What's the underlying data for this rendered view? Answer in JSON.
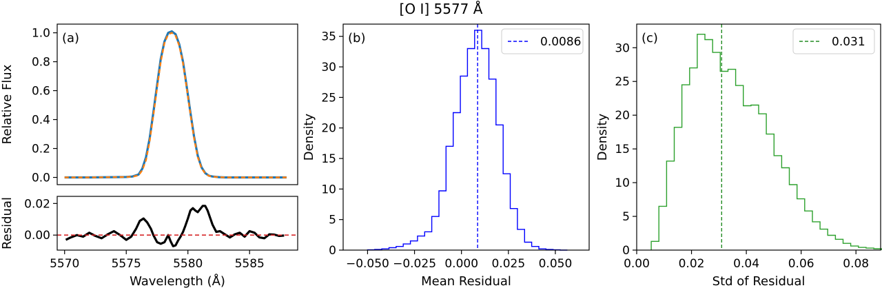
{
  "figure": {
    "title": "[O I] 5577 Å"
  },
  "chart_data": [
    {
      "id": "a",
      "type": "line",
      "panel_label": "(a)",
      "xlabel": "Wavelength (Å)",
      "ylabel": "Relative Flux",
      "xlim": [
        5569.4,
        5588.9
      ],
      "ylim": [
        -0.05,
        1.06
      ],
      "yticks": [
        0.0,
        0.2,
        0.4,
        0.6,
        0.8,
        1.0
      ],
      "ytick_labels": [
        "0.0",
        "0.2",
        "0.4",
        "0.6",
        "0.8",
        "1.0"
      ],
      "series": [
        {
          "color": "#1f77b4",
          "style": "solid",
          "x": [
            5570.0,
            5572.0,
            5574.0,
            5575.0,
            5575.5,
            5576.0,
            5576.3,
            5576.6,
            5576.9,
            5577.2,
            5577.5,
            5577.8,
            5578.1,
            5578.4,
            5578.7,
            5579.0,
            5579.3,
            5579.6,
            5579.9,
            5580.2,
            5580.5,
            5580.8,
            5581.1,
            5581.4,
            5581.7,
            5582.0,
            5582.5,
            5583.0,
            5584.0,
            5586.0,
            5588.0
          ],
          "y": [
            0.0,
            0.0,
            0.002,
            0.003,
            0.006,
            0.02,
            0.06,
            0.14,
            0.27,
            0.45,
            0.64,
            0.82,
            0.94,
            1.0,
            1.01,
            0.99,
            0.92,
            0.8,
            0.63,
            0.45,
            0.28,
            0.15,
            0.07,
            0.03,
            0.012,
            0.006,
            0.002,
            0.0,
            0.0,
            0.0,
            0.0
          ]
        },
        {
          "color": "#ff7f0e",
          "style": "dashed",
          "x": [
            5570.0,
            5572.0,
            5574.0,
            5575.0,
            5575.5,
            5576.0,
            5576.3,
            5576.6,
            5576.9,
            5577.2,
            5577.5,
            5577.8,
            5578.1,
            5578.4,
            5578.7,
            5579.0,
            5579.3,
            5579.6,
            5579.9,
            5580.2,
            5580.5,
            5580.8,
            5581.1,
            5581.4,
            5581.7,
            5582.0,
            5582.5,
            5583.0,
            5584.0,
            5586.0,
            5588.0
          ],
          "y": [
            0.0,
            0.0,
            0.002,
            0.003,
            0.005,
            0.015,
            0.05,
            0.12,
            0.25,
            0.43,
            0.62,
            0.8,
            0.93,
            0.99,
            1.0,
            0.98,
            0.91,
            0.79,
            0.62,
            0.44,
            0.27,
            0.14,
            0.065,
            0.028,
            0.011,
            0.005,
            0.002,
            0.0,
            0.0,
            0.0,
            0.0
          ]
        }
      ]
    },
    {
      "id": "a-residual",
      "type": "line",
      "xlabel": "Wavelength (Å)",
      "ylabel": "Residual",
      "xlim": [
        5569.4,
        5588.9
      ],
      "ylim": [
        -0.0095,
        0.0245
      ],
      "xticks": [
        5570,
        5575,
        5580,
        5585
      ],
      "xtick_labels": [
        "5570",
        "5575",
        "5580",
        "5585"
      ],
      "yticks": [
        0.0,
        0.02
      ],
      "ytick_labels": [
        "0.00",
        "0.02"
      ],
      "zero_line": {
        "y": 0,
        "color": "#d62728",
        "style": "dashed"
      },
      "series": [
        {
          "color": "#000000",
          "x": [
            5570.1,
            5570.5,
            5571.0,
            5571.5,
            5572.0,
            5572.5,
            5573.0,
            5573.5,
            5574.0,
            5574.5,
            5575.0,
            5575.4,
            5575.8,
            5576.1,
            5576.4,
            5576.7,
            5577.0,
            5577.2,
            5577.5,
            5577.8,
            5578.1,
            5578.4,
            5578.6,
            5578.8,
            5579.0,
            5579.2,
            5579.4,
            5579.6,
            5579.8,
            5580.0,
            5580.2,
            5580.4,
            5580.6,
            5580.8,
            5581.0,
            5581.2,
            5581.4,
            5581.6,
            5581.8,
            5582.0,
            5582.3,
            5582.6,
            5583.0,
            5583.4,
            5583.8,
            5584.2,
            5584.6,
            5585.0,
            5585.4,
            5585.8,
            5586.2,
            5586.6,
            5587.0,
            5587.4,
            5587.8
          ],
          "y": [
            -0.003,
            -0.0015,
            0.0,
            -0.001,
            0.0015,
            -0.0005,
            -0.002,
            0.0005,
            0.0025,
            0.0,
            -0.003,
            -0.001,
            0.004,
            0.009,
            0.0105,
            0.008,
            0.004,
            0.0,
            -0.0045,
            -0.0055,
            -0.0045,
            0.0,
            -0.004,
            -0.007,
            -0.0065,
            -0.0035,
            -0.001,
            0.002,
            0.006,
            0.0105,
            0.0155,
            0.017,
            0.0155,
            0.0145,
            0.0165,
            0.0185,
            0.0185,
            0.0155,
            0.011,
            0.0065,
            0.002,
            0.0025,
            0.0005,
            -0.0015,
            0.0005,
            0.0015,
            -0.001,
            0.0025,
            0.0015,
            -0.0015,
            -0.002,
            0.0005,
            0.0003,
            -0.0005,
            -0.0003
          ]
        }
      ]
    },
    {
      "id": "b",
      "type": "histogram",
      "panel_label": "(b)",
      "xlabel": "Mean Residual",
      "ylabel": "Density",
      "xlim": [
        -0.063,
        0.068
      ],
      "ylim": [
        0,
        37
      ],
      "xticks": [
        -0.05,
        -0.025,
        0.0,
        0.025,
        0.05
      ],
      "xtick_labels": [
        "−0.050",
        "−0.025",
        "0.000",
        "0.025",
        "0.050"
      ],
      "yticks": [
        0,
        5,
        10,
        15,
        20,
        25,
        30,
        35
      ],
      "ytick_labels": [
        "0",
        "5",
        "10",
        "15",
        "20",
        "25",
        "30",
        "35"
      ],
      "color": "#0000ff",
      "bin_edges": [
        -0.05,
        -0.0462,
        -0.0424,
        -0.0386,
        -0.0348,
        -0.031,
        -0.0272,
        -0.0234,
        -0.0196,
        -0.0158,
        -0.012,
        -0.0082,
        -0.0044,
        -0.0006,
        0.0032,
        0.007,
        0.0108,
        0.0146,
        0.0184,
        0.0222,
        0.026,
        0.0298,
        0.0336,
        0.0374,
        0.0412,
        0.045,
        0.0488,
        0.0526,
        0.0564
      ],
      "densities": [
        0.05,
        0.1,
        0.2,
        0.4,
        0.6,
        1.0,
        1.5,
        2.3,
        3.0,
        5.5,
        9.7,
        17.0,
        22.5,
        28.5,
        33.0,
        36.0,
        33.0,
        28.0,
        20.5,
        12.5,
        6.8,
        3.4,
        1.3,
        0.6,
        0.2,
        0.1,
        0.05,
        0.0
      ],
      "vline": {
        "x": 0.0086,
        "color": "#0000ff",
        "style": "dashed",
        "label": "0.0086"
      },
      "legend_position": "top-right"
    },
    {
      "id": "c",
      "type": "histogram",
      "panel_label": "(c)",
      "xlabel": "Std of Residual",
      "ylabel": "Density",
      "xlim": [
        0.0,
        0.089
      ],
      "ylim": [
        0,
        33.5
      ],
      "xticks": [
        0.0,
        0.02,
        0.04,
        0.06,
        0.08
      ],
      "xtick_labels": [
        "0.00",
        "0.02",
        "0.04",
        "0.06",
        "0.08"
      ],
      "yticks": [
        0,
        5,
        10,
        15,
        20,
        25,
        30
      ],
      "ytick_labels": [
        "0",
        "5",
        "10",
        "15",
        "20",
        "25",
        "30"
      ],
      "color": "#2ca02c",
      "bin_edges": [
        0.0053,
        0.0081,
        0.0109,
        0.0137,
        0.0165,
        0.0193,
        0.0221,
        0.0249,
        0.0277,
        0.0305,
        0.0333,
        0.0361,
        0.0389,
        0.0417,
        0.0445,
        0.0473,
        0.0501,
        0.0529,
        0.0557,
        0.0585,
        0.0613,
        0.0641,
        0.0669,
        0.0697,
        0.0725,
        0.0753,
        0.0781,
        0.0809,
        0.0837,
        0.0865,
        0.0893
      ],
      "densities": [
        1.3,
        6.5,
        13.2,
        18.2,
        24.5,
        27.0,
        32.0,
        31.2,
        29.3,
        26.5,
        26.8,
        24.4,
        21.4,
        21.5,
        20.2,
        17.2,
        14.0,
        12.2,
        9.7,
        7.6,
        5.8,
        4.2,
        3.1,
        2.2,
        1.6,
        1.0,
        0.6,
        0.4,
        0.3,
        0.2
      ],
      "vline": {
        "x": 0.031,
        "color": "#228b22",
        "style": "dashed",
        "label": "0.031"
      },
      "legend_position": "top-right"
    }
  ]
}
